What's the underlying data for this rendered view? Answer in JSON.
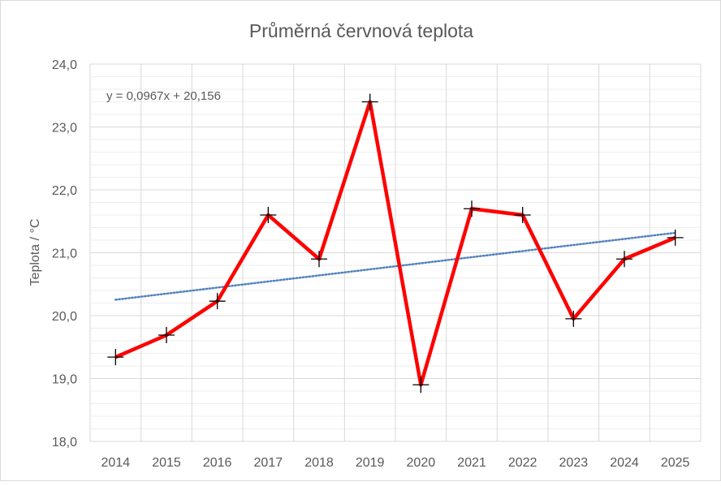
{
  "chart_data": {
    "type": "line",
    "title": "Průměrná červnová teplota",
    "xlabel": "",
    "ylabel": "Teplota / °C",
    "categories": [
      "2014",
      "2015",
      "2016",
      "2017",
      "2018",
      "2019",
      "2020",
      "2021",
      "2022",
      "2023",
      "2024",
      "2025"
    ],
    "series": [
      {
        "name": "Teplota",
        "color": "#ff0000",
        "marker": "plus",
        "values": [
          19.34,
          19.69,
          20.23,
          21.6,
          20.9,
          23.4,
          18.9,
          21.7,
          21.6,
          19.95,
          20.9,
          21.24
        ]
      }
    ],
    "trendline": {
      "type": "linear",
      "slope": 0.0967,
      "intercept": 20.156,
      "color": "#4f81bd",
      "label": "y = 0,0967x + 20,156"
    },
    "ylim": [
      18,
      24
    ],
    "yticks": [
      "18,0",
      "19,0",
      "20,0",
      "21,0",
      "22,0",
      "23,0",
      "24,0"
    ],
    "ytick_values": [
      18,
      19,
      20,
      21,
      22,
      23,
      24
    ],
    "minor_step": 0.2,
    "grid": true,
    "legend": "none"
  }
}
